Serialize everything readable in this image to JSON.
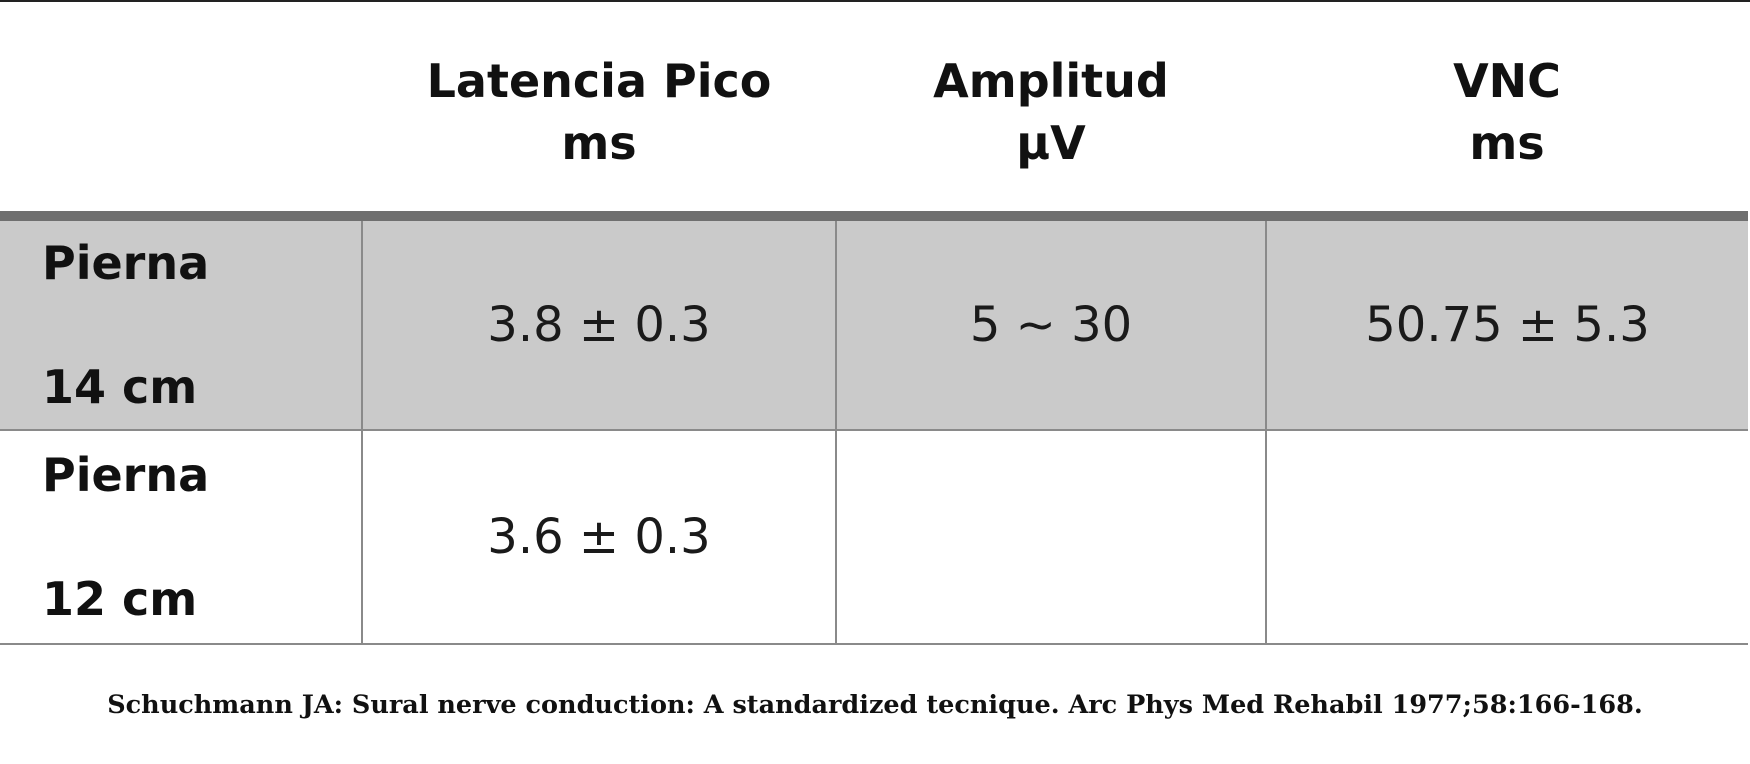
{
  "table": {
    "headers": [
      {
        "line1": "",
        "line2": ""
      },
      {
        "line1": "Latencia Pico",
        "line2": "ms"
      },
      {
        "line1": "Amplitud",
        "line2": "µV"
      },
      {
        "line1": "VNC",
        "line2": "ms"
      }
    ],
    "rows": [
      {
        "label_top": "Pierna",
        "label_bottom": "14 cm",
        "latencia": "3.8 ± 0.3",
        "amplitud": "5 ~ 30",
        "vnc": "50.75 ± 5.3",
        "shaded": true
      },
      {
        "label_top": "Pierna",
        "label_bottom": "12 cm",
        "latencia": "3.6 ± 0.3",
        "amplitud": "",
        "vnc": "",
        "shaded": false
      }
    ]
  },
  "colors": {
    "shaded_row": "#cacaca",
    "header_rule": "#6f6f6f",
    "grid_line": "#8a8a8a"
  },
  "citation": "Schuchmann JA: Sural nerve conduction: A standardized tecnique. Arc Phys Med Rehabil 1977;58:166-168."
}
